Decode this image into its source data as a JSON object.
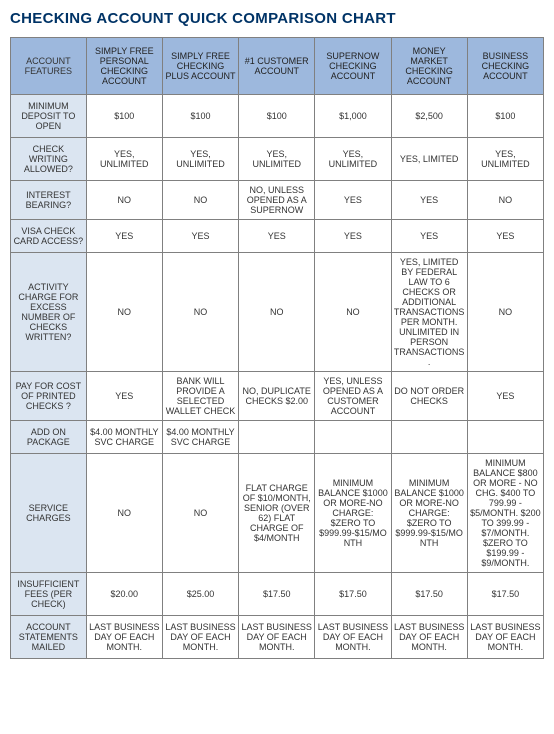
{
  "title": "CHECKING ACCOUNT QUICK COMPARISON CHART",
  "columns": [
    "ACCOUNT FEATURES",
    "SIMPLY FREE PERSONAL CHECKING ACCOUNT",
    "SIMPLY FREE CHECKING PLUS ACCOUNT",
    "#1 CUSTOMER ACCOUNT",
    "SUPERNOW CHECKING ACCOUNT",
    "MONEY MARKET CHECKING ACCOUNT",
    "BUSINESS CHECKING ACCOUNT"
  ],
  "rows": [
    {
      "feature": "MINIMUM DEPOSIT TO OPEN",
      "cells": [
        "$100",
        "$100",
        "$100",
        "$1,000",
        "$2,500",
        "$100"
      ]
    },
    {
      "feature": "CHECK WRITING ALLOWED?",
      "cells": [
        "YES, UNLIMITED",
        "YES, UNLIMITED",
        "YES, UNLIMITED",
        "YES, UNLIMITED",
        "YES, LIMITED",
        "YES, UNLIMITED"
      ]
    },
    {
      "feature": "INTEREST BEARING?",
      "cells": [
        "NO",
        "NO",
        "NO, UNLESS OPENED AS A SUPERNOW",
        "YES",
        "YES",
        "NO"
      ]
    },
    {
      "feature": "VISA CHECK CARD ACCESS?",
      "cells": [
        "YES",
        "YES",
        "YES",
        "YES",
        "YES",
        "YES"
      ]
    },
    {
      "feature": "ACTIVITY CHARGE FOR EXCESS NUMBER OF CHECKS WRITTEN?",
      "cells": [
        "NO",
        "NO",
        "NO",
        "NO",
        "YES, LIMITED BY FEDERAL LAW TO 6 CHECKS OR ADDITIONAL TRANSACTIONS PER MONTH. UNLIMITED IN PERSON TRANSACTIONS.",
        "NO"
      ]
    },
    {
      "feature": "PAY FOR COST OF PRINTED CHECKS ?",
      "cells": [
        "YES",
        "BANK WILL PROVIDE A SELECTED WALLET CHECK",
        "NO, DUPLICATE CHECKS $2.00",
        "YES, UNLESS OPENED AS A CUSTOMER ACCOUNT",
        "DO NOT ORDER CHECKS",
        "YES"
      ]
    },
    {
      "feature": "ADD ON PACKAGE",
      "cells": [
        "$4.00 MONTHLY SVC CHARGE",
        "$4.00 MONTHLY SVC CHARGE",
        "",
        "",
        "",
        ""
      ]
    },
    {
      "feature": "SERVICE CHARGES",
      "cells": [
        "NO",
        "NO",
        "FLAT CHARGE OF $10/MONTH, SENIOR (OVER 62) FLAT CHARGE OF $4/MONTH",
        "MINIMUM BALANCE $1000 OR MORE-NO CHARGE: $ZERO TO $999.99-$15/MONTH",
        "MINIMUM BALANCE $1000 OR MORE-NO CHARGE: $ZERO TO $999.99-$15/MONTH",
        "MINIMUM BALANCE $800 OR MORE - NO CHG. $400 TO 799.99 - $5/MONTH. $200 TO 399.99 - $7/MONTH. $ZERO TO $199.99 - $9/MONTH."
      ]
    },
    {
      "feature": "INSUFFICIENT FEES (PER CHECK)",
      "cells": [
        "$20.00",
        "$25.00",
        "$17.50",
        "$17.50",
        "$17.50",
        "$17.50"
      ]
    },
    {
      "feature": "ACCOUNT STATEMENTS MAILED",
      "cells": [
        "LAST BUSINESS DAY OF EACH MONTH.",
        "LAST BUSINESS DAY OF EACH MONTH.",
        "LAST BUSINESS DAY OF EACH MONTH.",
        "LAST BUSINESS DAY OF EACH MONTH.",
        "LAST BUSINESS DAY OF EACH MONTH.",
        "LAST BUSINESS DAY OF EACH MONTH."
      ]
    }
  ],
  "colors": {
    "title": "#003366",
    "header_bg": "#9db8dd",
    "feature_bg": "#dbe5f1",
    "border": "#808080"
  }
}
